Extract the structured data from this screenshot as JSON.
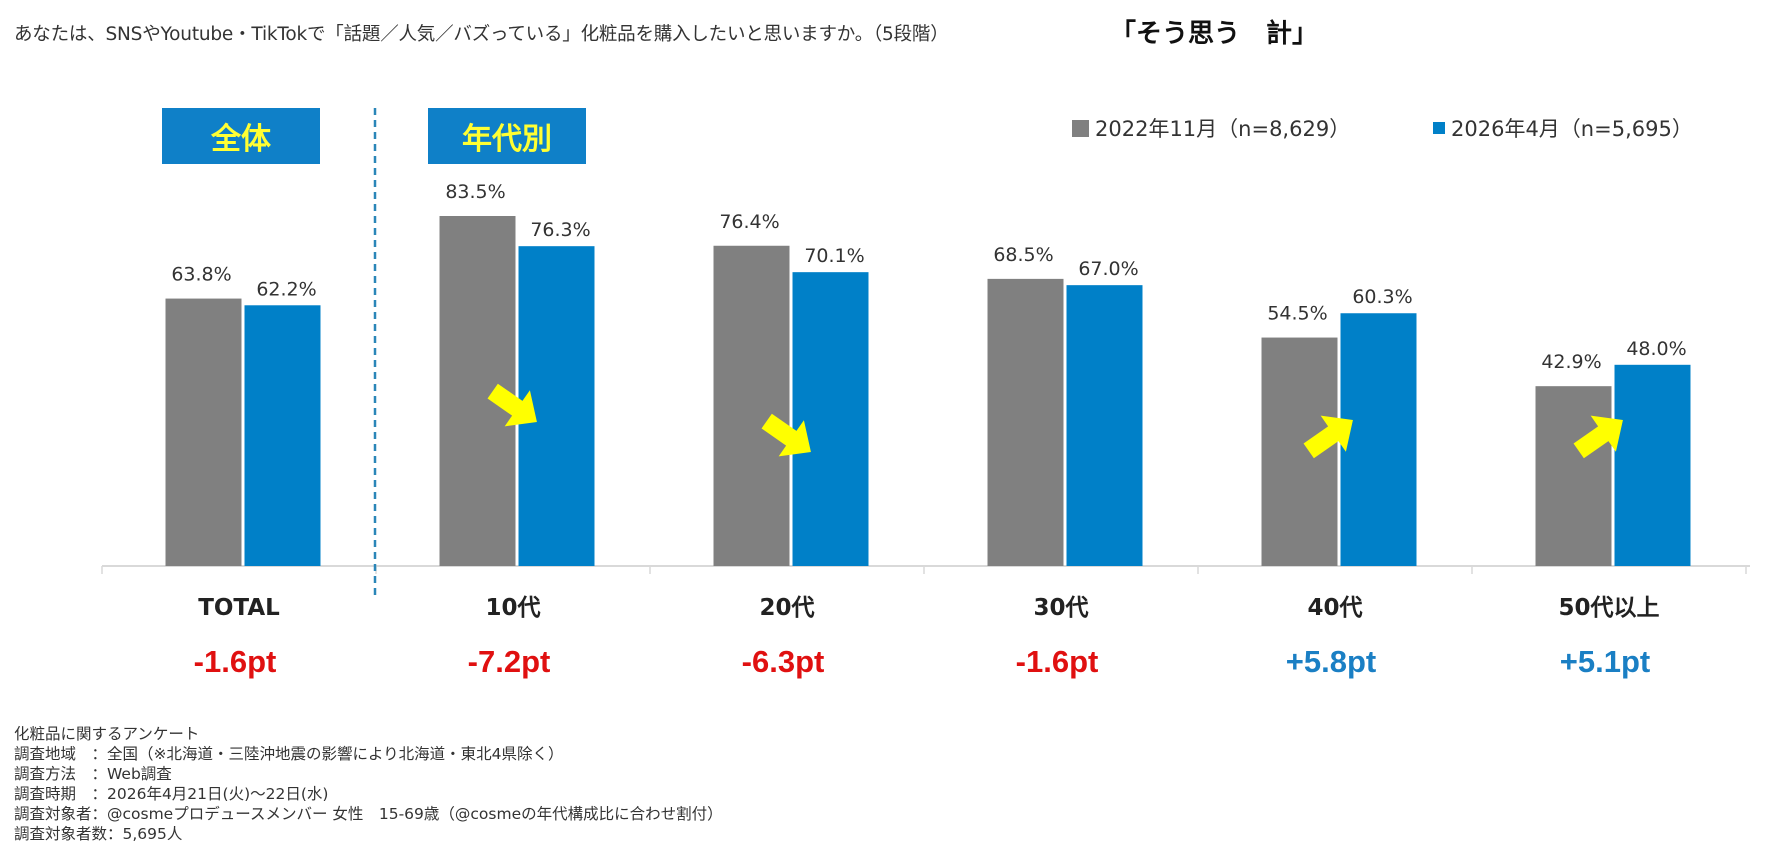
{
  "question": {
    "text": "あなたは、SNSやYoutube・TikTokで「話題／人気／バズっている」化粧品を購入したいと思いますか。（5段階）",
    "emphasis": "「そう思う　計」"
  },
  "sections": {
    "overall_label": "全体",
    "by_age_label": "年代別"
  },
  "colors": {
    "series_2022": "#808080",
    "series_2026": "#0080c8",
    "badge_bg": "#0f80c8",
    "badge_text": "#ffff33",
    "negative_diff": "#e01010",
    "positive_diff": "#1a7fc4",
    "arrow": "#ffff00",
    "divider": "#2a86b8"
  },
  "legend": [
    {
      "label": "2022年11月（n=8,629）",
      "color": "#808080"
    },
    {
      "label": "2026年4月（n=5,695）",
      "color": "#0080c8"
    }
  ],
  "chart_data": {
    "type": "bar",
    "categories": [
      "TOTAL",
      "10代",
      "20代",
      "30代",
      "40代",
      "50代以上"
    ],
    "series": [
      {
        "name": "2022年11月（n=8,629）",
        "values": [
          63.8,
          83.5,
          76.4,
          68.5,
          54.5,
          42.9
        ],
        "labels": [
          "63.8%",
          "83.5%",
          "76.4%",
          "68.5%",
          "54.5%",
          "42.9%"
        ]
      },
      {
        "name": "2026年4月（n=5,695）",
        "values": [
          62.2,
          76.3,
          70.1,
          67.0,
          60.3,
          48.0
        ],
        "labels": [
          "62.2%",
          "76.3%",
          "70.1%",
          "67.0%",
          "60.3%",
          "48.0%"
        ]
      }
    ],
    "differences": [
      {
        "label": "-1.6pt",
        "sign": "negative"
      },
      {
        "label": "-7.2pt",
        "sign": "negative"
      },
      {
        "label": "-6.3pt",
        "sign": "negative"
      },
      {
        "label": "-1.6pt",
        "sign": "negative"
      },
      {
        "label": "+5.8pt",
        "sign": "positive"
      },
      {
        "label": "+5.1pt",
        "sign": "positive"
      }
    ],
    "arrows": [
      {
        "category": "10代",
        "direction": "down"
      },
      {
        "category": "20代",
        "direction": "down"
      },
      {
        "category": "40代",
        "direction": "up"
      },
      {
        "category": "50代以上",
        "direction": "up"
      }
    ],
    "ylim": [
      0,
      100
    ],
    "grid": false,
    "legend_position": "top-right"
  },
  "footer": [
    "化粧品に関するアンケート",
    "調査地域　：全国（※北海道・三陸沖地震の影響により北海道・東北4県除く）",
    "調査方法　：Web調査",
    "調査時期　：2026年4月21日(火)～22日(水)",
    "調査対象者：@cosmeプロデュースメンバー 女性　15-69歳（@cosmeの年代構成比に合わせ割付）",
    "調査対象者数：5,695人"
  ]
}
